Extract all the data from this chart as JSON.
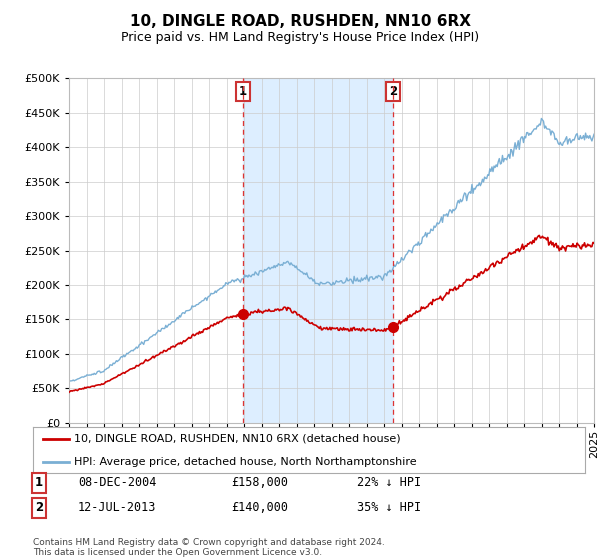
{
  "title": "10, DINGLE ROAD, RUSHDEN, NN10 6RX",
  "subtitle": "Price paid vs. HM Land Registry's House Price Index (HPI)",
  "ytick_values": [
    0,
    50000,
    100000,
    150000,
    200000,
    250000,
    300000,
    350000,
    400000,
    450000,
    500000
  ],
  "ylim": [
    0,
    500000
  ],
  "xlim_start": 1995,
  "xlim_end": 2025,
  "xticks": [
    1995,
    1996,
    1997,
    1998,
    1999,
    2000,
    2001,
    2002,
    2003,
    2004,
    2005,
    2006,
    2007,
    2008,
    2009,
    2010,
    2011,
    2012,
    2013,
    2014,
    2015,
    2016,
    2017,
    2018,
    2019,
    2020,
    2021,
    2022,
    2023,
    2024,
    2025
  ],
  "sale1_x": 2004.92,
  "sale1_y": 158000,
  "sale1_label": "1",
  "sale1_date": "08-DEC-2004",
  "sale1_price": "£158,000",
  "sale1_hpi": "22% ↓ HPI",
  "sale2_x": 2013.53,
  "sale2_y": 140000,
  "sale2_label": "2",
  "sale2_date": "12-JUL-2013",
  "sale2_price": "£140,000",
  "sale2_hpi": "35% ↓ HPI",
  "legend_line1": "10, DINGLE ROAD, RUSHDEN, NN10 6RX (detached house)",
  "legend_line2": "HPI: Average price, detached house, North Northamptonshire",
  "footer": "Contains HM Land Registry data © Crown copyright and database right 2024.\nThis data is licensed under the Open Government Licence v3.0.",
  "red_color": "#cc0000",
  "blue_color": "#7aafd4",
  "span_color": "#ddeeff"
}
